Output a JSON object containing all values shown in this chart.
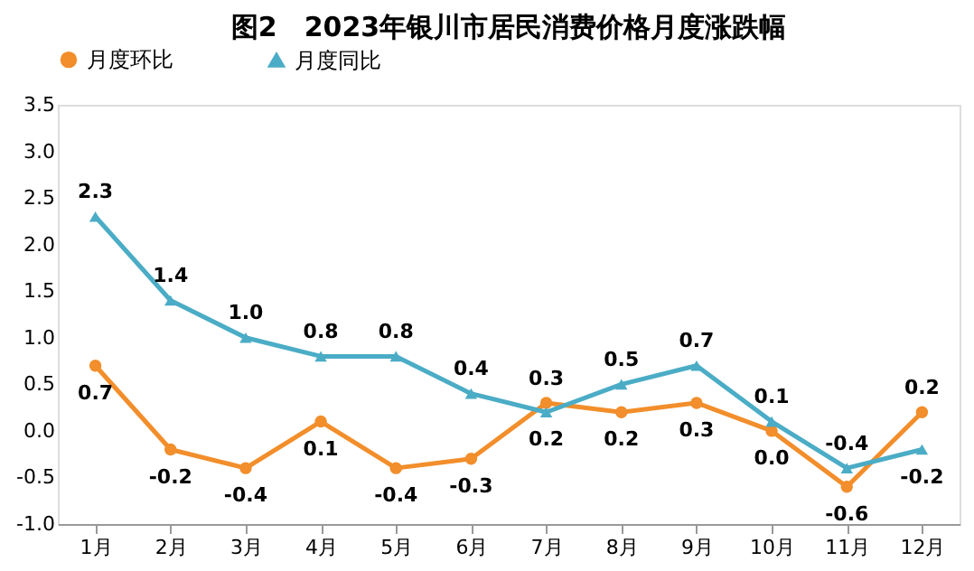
{
  "chart_data": {
    "type": "line",
    "title": "图2　2023年银川市居民消费价格月度涨跌幅",
    "categories": [
      "1月",
      "2月",
      "3月",
      "4月",
      "5月",
      "6月",
      "7月",
      "8月",
      "9月",
      "10月",
      "11月",
      "12月"
    ],
    "series": [
      {
        "name": "月度环比",
        "color": "#f28e2b",
        "marker": "circle",
        "values": [
          0.7,
          -0.2,
          -0.4,
          0.1,
          -0.4,
          -0.3,
          0.3,
          0.2,
          0.3,
          0.0,
          -0.6,
          0.2
        ],
        "value_labels": [
          "0.7",
          "-0.2",
          "-0.4",
          "0.1",
          "-0.4",
          "-0.3",
          "0.3",
          "0.2",
          "0.3",
          "0.0",
          "-0.6",
          "0.2"
        ]
      },
      {
        "name": "月度同比",
        "color": "#4bacc6",
        "marker": "triangle",
        "values": [
          2.3,
          1.4,
          1.0,
          0.8,
          0.8,
          0.4,
          0.2,
          0.5,
          0.7,
          0.1,
          -0.4,
          -0.2
        ],
        "value_labels": [
          "2.3",
          "1.4",
          "1.0",
          "0.8",
          "0.8",
          "0.4",
          "0.2",
          "0.5",
          "0.7",
          "0.1",
          "-0.4",
          "-0.2"
        ]
      }
    ],
    "ylim": [
      -1.0,
      3.5
    ],
    "yticks": [
      {
        "value": -1.0,
        "label": "-1.0"
      },
      -0.5,
      {
        "value": 0,
        "label": "0.0"
      },
      0.5,
      {
        "value": 1,
        "label": "1.0"
      },
      1.5,
      {
        "value": 2,
        "label": "2.0"
      },
      2.5,
      {
        "value": 3,
        "label": "3.0"
      },
      3.5
    ],
    "grid": false,
    "legend": "top",
    "line_style": "solid"
  }
}
